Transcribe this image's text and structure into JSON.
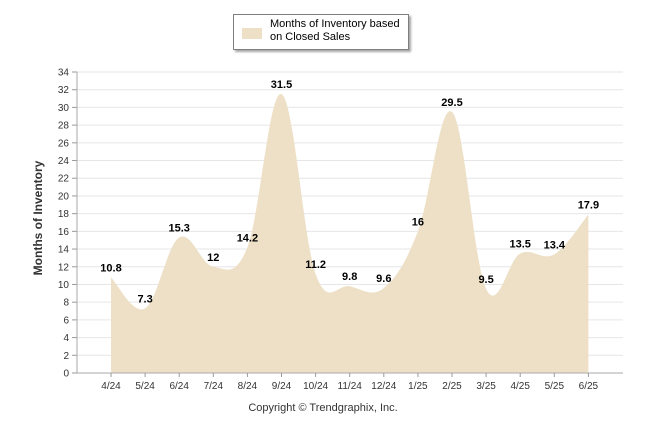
{
  "legend": {
    "label": "Months of Inventory based on Closed Sales",
    "color": "#ede0c7"
  },
  "copyright": "Copyright © Trendgraphix, Inc.",
  "chart_data": {
    "type": "area",
    "title": "",
    "ylabel": "Months of Inventory",
    "xlabel": "",
    "ylim": [
      0,
      34
    ],
    "yticks": [
      0,
      2,
      4,
      6,
      8,
      10,
      12,
      14,
      16,
      18,
      20,
      22,
      24,
      26,
      28,
      30,
      32,
      34
    ],
    "grid": true,
    "legend_position": "top",
    "categories": [
      "4/24",
      "5/24",
      "6/24",
      "7/24",
      "8/24",
      "9/24",
      "10/24",
      "11/24",
      "12/24",
      "1/25",
      "2/25",
      "3/25",
      "4/25",
      "5/25",
      "6/25"
    ],
    "series": [
      {
        "name": "Months of Inventory based on Closed Sales",
        "values": [
          10.8,
          7.3,
          15.3,
          12,
          14.2,
          31.5,
          11.2,
          9.8,
          9.6,
          16,
          29.5,
          9.5,
          13.5,
          13.4,
          17.9
        ],
        "labels": [
          "10.8",
          "7.3",
          "15.3",
          "12",
          "14.2",
          "31.5",
          "11.2",
          "9.8",
          "9.6",
          "16",
          "29.5",
          "9.5",
          "13.5",
          "13.4",
          "17.9"
        ],
        "color": "#ede0c7"
      }
    ]
  }
}
